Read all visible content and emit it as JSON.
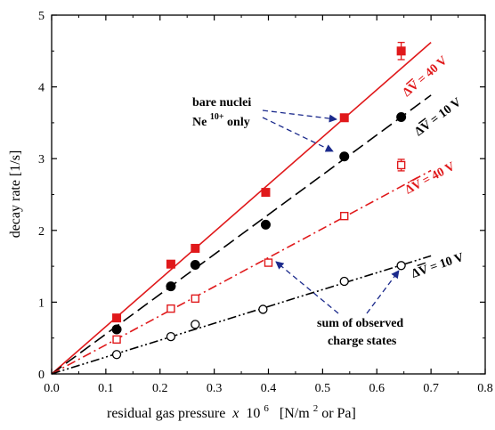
{
  "chart_data": {
    "type": "scatter",
    "xlabel_main": "residual gas pressure",
    "xlabel_x": "x",
    "xlabel_exp": "6",
    "xlabel_ten": "10",
    "xlabel_units_a": "[N/m",
    "xlabel_units_sup": "2",
    "xlabel_units_b": " or Pa]",
    "ylabel": "decay rate  [1/s]",
    "xlim": [
      0.0,
      0.8
    ],
    "ylim": [
      0,
      5
    ],
    "x_ticks": [
      "0.0",
      "0.1",
      "0.2",
      "0.3",
      "0.4",
      "0.5",
      "0.6",
      "0.7",
      "0.8"
    ],
    "y_ticks": [
      "0",
      "1",
      "2",
      "3",
      "4",
      "5"
    ],
    "colors": {
      "red": "#e0191b",
      "black": "#000000",
      "blue": "#1b2a8c"
    },
    "series": [
      {
        "key": "bare40",
        "marker": "filled-square",
        "color": "#e0191b",
        "x": [
          0.12,
          0.22,
          0.265,
          0.395,
          0.54,
          0.645
        ],
        "y": [
          0.78,
          1.53,
          1.75,
          2.53,
          3.57,
          4.5
        ],
        "yerr": [
          0,
          0,
          0,
          0,
          0,
          0.12
        ],
        "fit": {
          "type": "line",
          "slope": 6.6,
          "x_end": 0.7,
          "dash": "solid"
        }
      },
      {
        "key": "bare10",
        "marker": "filled-circle",
        "color": "#000000",
        "x": [
          0.12,
          0.22,
          0.265,
          0.395,
          0.54,
          0.645
        ],
        "y": [
          0.62,
          1.22,
          1.52,
          2.08,
          3.03,
          3.58
        ],
        "fit": {
          "type": "line",
          "slope": 5.55,
          "x_end": 0.7,
          "dash": "long-dash"
        }
      },
      {
        "key": "sum40",
        "marker": "open-square",
        "color": "#e0191b",
        "x": [
          0.12,
          0.22,
          0.265,
          0.4,
          0.54,
          0.645
        ],
        "y": [
          0.48,
          0.91,
          1.05,
          1.55,
          2.2,
          2.91
        ],
        "yerr": [
          0,
          0,
          0,
          0,
          0,
          0.08
        ],
        "fit": {
          "type": "line",
          "slope": 4.05,
          "x_end": 0.7,
          "dash": "dash-dot"
        }
      },
      {
        "key": "sum10",
        "marker": "open-circle",
        "color": "#000000",
        "x": [
          0.12,
          0.22,
          0.265,
          0.39,
          0.54,
          0.645
        ],
        "y": [
          0.27,
          0.52,
          0.69,
          0.9,
          1.29,
          1.51
        ],
        "fit": {
          "type": "line",
          "slope": 2.35,
          "x_end": 0.7,
          "dash": "dash-dot-dot"
        }
      }
    ],
    "annotations": {
      "bare_line1": "bare nuclei",
      "bare_line2_a": "Ne",
      "bare_line2_sup": "10+",
      "bare_line2_b": " only",
      "sum_line1": "sum of observed",
      "sum_line2": "charge states",
      "dv_delta": "Δ",
      "dv_v": "V",
      "dv_eq40": " = 40 V",
      "dv_eq10": " = 10 V"
    }
  }
}
